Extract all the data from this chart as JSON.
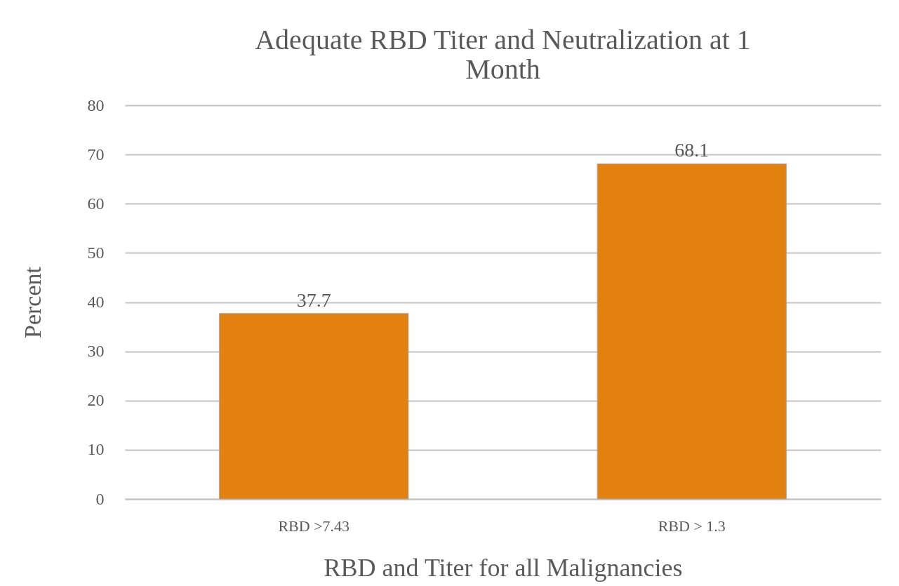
{
  "chart_data": {
    "type": "bar",
    "title": "Adequate RBD Titer and Neutralization at 1 Month",
    "xlabel": "RBD and Titer for all Malignancies",
    "ylabel": "Percent",
    "categories": [
      "RBD >7.43",
      "RBD > 1.3"
    ],
    "values": [
      37.7,
      68.1
    ],
    "color": "#e3810f",
    "ylim": [
      0,
      80
    ],
    "yticks": [
      0,
      10,
      20,
      30,
      40,
      50,
      60,
      70,
      80
    ],
    "grid": "y",
    "data_labels": true
  }
}
